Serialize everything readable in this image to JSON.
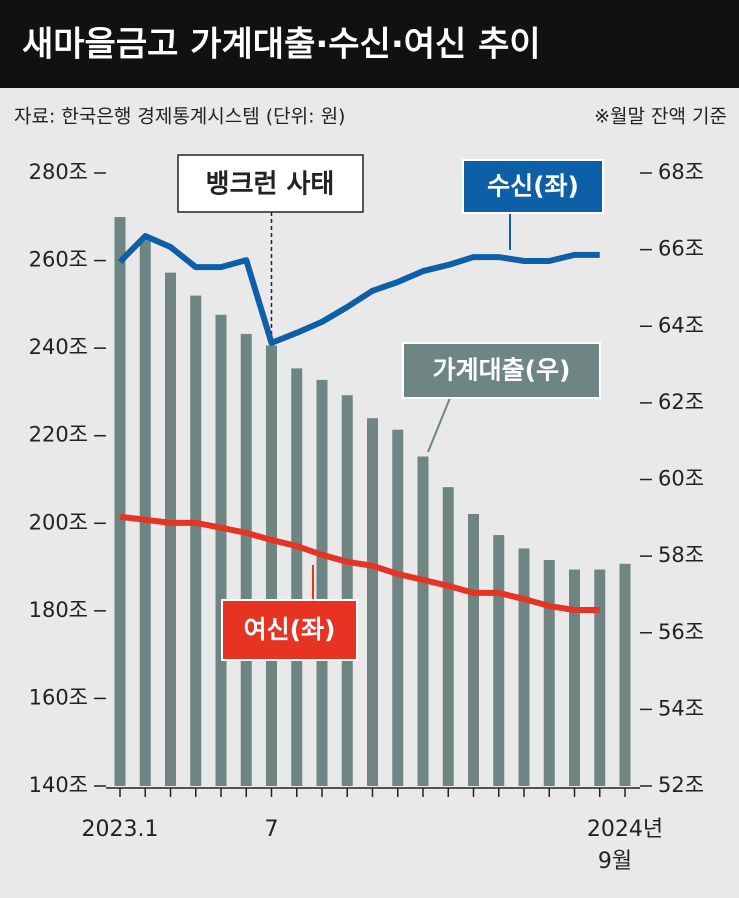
{
  "chart_data": {
    "type": "bar-line",
    "title": "새마을금고 가계대출·수신·여신 추이",
    "subtitle": "자료: 한국은행 경제통계시스템 (단위: 원)",
    "note": "※월말 잔액 기준",
    "categories": [
      "2023.1",
      null,
      null,
      null,
      null,
      null,
      "7",
      null,
      null,
      null,
      null,
      null,
      null,
      null,
      null,
      null,
      null,
      null,
      null,
      null,
      "2024년 9월"
    ],
    "ylim": [
      140,
      280
    ],
    "yticks": [
      {
        "value": 140,
        "label": "140조"
      },
      {
        "value": 160,
        "label": "160조"
      },
      {
        "value": 180,
        "label": "180조"
      },
      {
        "value": 200,
        "label": "200조"
      },
      {
        "value": 220,
        "label": "220조"
      },
      {
        "value": 240,
        "label": "240조"
      },
      {
        "value": 260,
        "label": "260조"
      },
      {
        "value": 280,
        "label": "280조"
      }
    ],
    "y2lim": [
      52,
      68
    ],
    "y2ticks": [
      {
        "value": 52,
        "label": "52조"
      },
      {
        "value": 54,
        "label": "54조"
      },
      {
        "value": 56,
        "label": "56조"
      },
      {
        "value": 58,
        "label": "58조"
      },
      {
        "value": 60,
        "label": "60조"
      },
      {
        "value": 62,
        "label": "62조"
      },
      {
        "value": 64,
        "label": "64조"
      },
      {
        "value": 66,
        "label": "66조"
      },
      {
        "value": 68,
        "label": "68조"
      }
    ],
    "series": [
      {
        "name": "수신(좌)",
        "type": "line",
        "color": "#0d5fa8",
        "values": [
          259.7,
          265.6,
          263.1,
          258.5,
          258.5,
          260.1,
          241.2,
          243.5,
          246,
          249.4,
          253.1,
          255.1,
          257.6,
          259,
          260.8,
          260.8,
          259.9,
          259.9,
          261.3,
          261.3,
          null
        ]
      },
      {
        "name": "가계대출(우)",
        "type": "bar",
        "color": "#6e8584",
        "axis": "y2",
        "values": [
          66.85,
          66.25,
          65.4,
          64.8,
          64.3,
          63.8,
          63.5,
          62.9,
          62.6,
          62.2,
          61.6,
          61.3,
          60.6,
          59.8,
          59.1,
          58.55,
          58.2,
          57.9,
          57.65,
          57.65,
          57.8
        ]
      },
      {
        "name": "여신(좌)",
        "type": "line",
        "color": "#e63322",
        "values": [
          201.5,
          200.8,
          200.1,
          200.1,
          199,
          197.8,
          196.2,
          194.8,
          192.8,
          191.2,
          190.3,
          188.4,
          187.1,
          185.7,
          184.1,
          184.1,
          182.7,
          181.1,
          180.2,
          180.2,
          null
        ]
      }
    ],
    "annotations": [
      {
        "text": "뱅크런 사태",
        "category": "7"
      }
    ]
  }
}
